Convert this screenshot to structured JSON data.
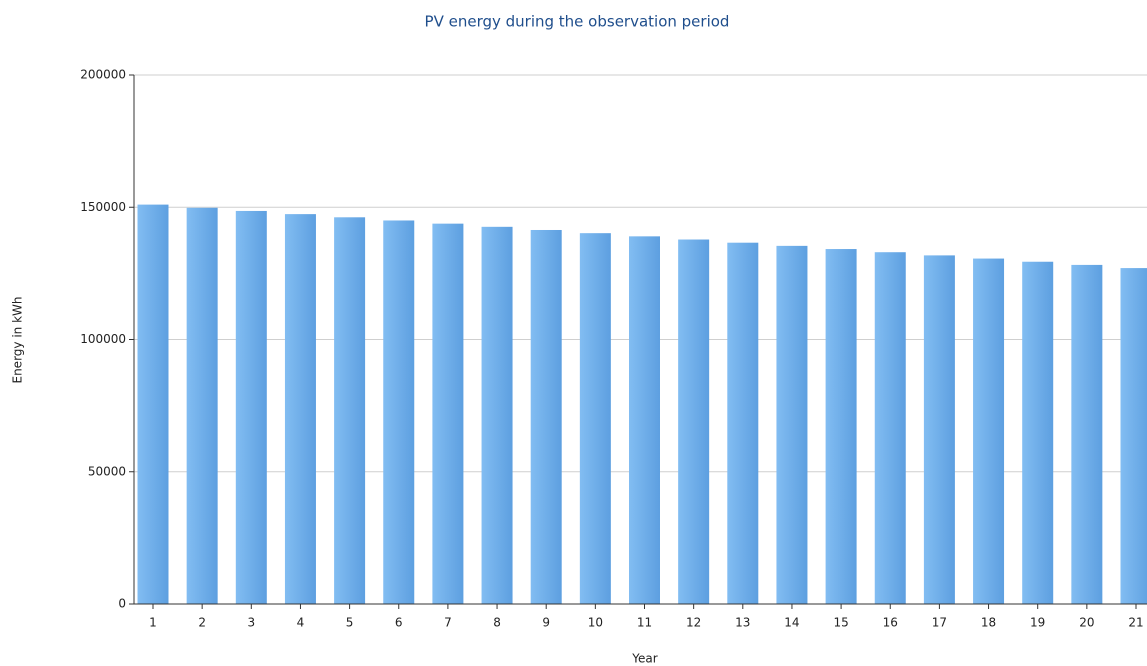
{
  "chart_data": {
    "type": "bar",
    "title": "PV energy during the observation period",
    "x_label": "Year",
    "y_label": "Energy in kWh",
    "categories": [
      "1",
      "2",
      "3",
      "4",
      "5",
      "6",
      "7",
      "8",
      "9",
      "10",
      "11",
      "12",
      "13",
      "14",
      "15",
      "16",
      "17",
      "18",
      "19",
      "20",
      "21"
    ],
    "values": [
      151000,
      149800,
      148600,
      147400,
      146200,
      145000,
      143800,
      142600,
      141400,
      140200,
      139000,
      137800,
      136600,
      135400,
      134200,
      133000,
      131800,
      130600,
      129400,
      128200,
      127000
    ],
    "color": "#6aaae8",
    "ylim": [
      0,
      200000
    ],
    "yticks": [
      0,
      50000,
      100000,
      150000,
      200000
    ],
    "grid": true
  }
}
